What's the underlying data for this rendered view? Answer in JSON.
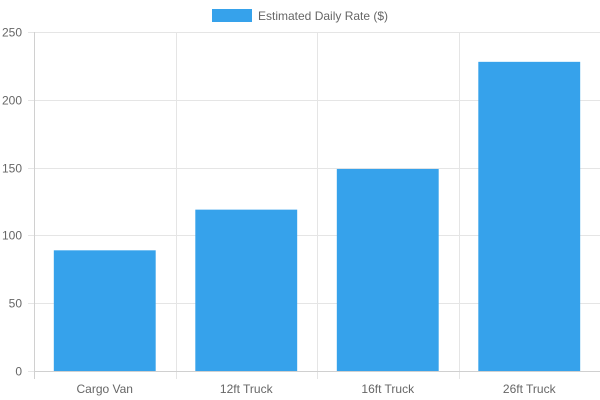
{
  "chart_data": {
    "type": "bar",
    "categories": [
      "Cargo Van",
      "12ft Truck",
      "16ft Truck",
      "26ft Truck"
    ],
    "series": [
      {
        "name": "Estimated Daily Rate ($)",
        "values": [
          89,
          119,
          149,
          228
        ],
        "color": "#36a2eb"
      }
    ],
    "ylim": [
      0,
      250
    ],
    "yticks": [
      0,
      50,
      100,
      150,
      200,
      250
    ],
    "grid": true,
    "legend_position": "top"
  }
}
